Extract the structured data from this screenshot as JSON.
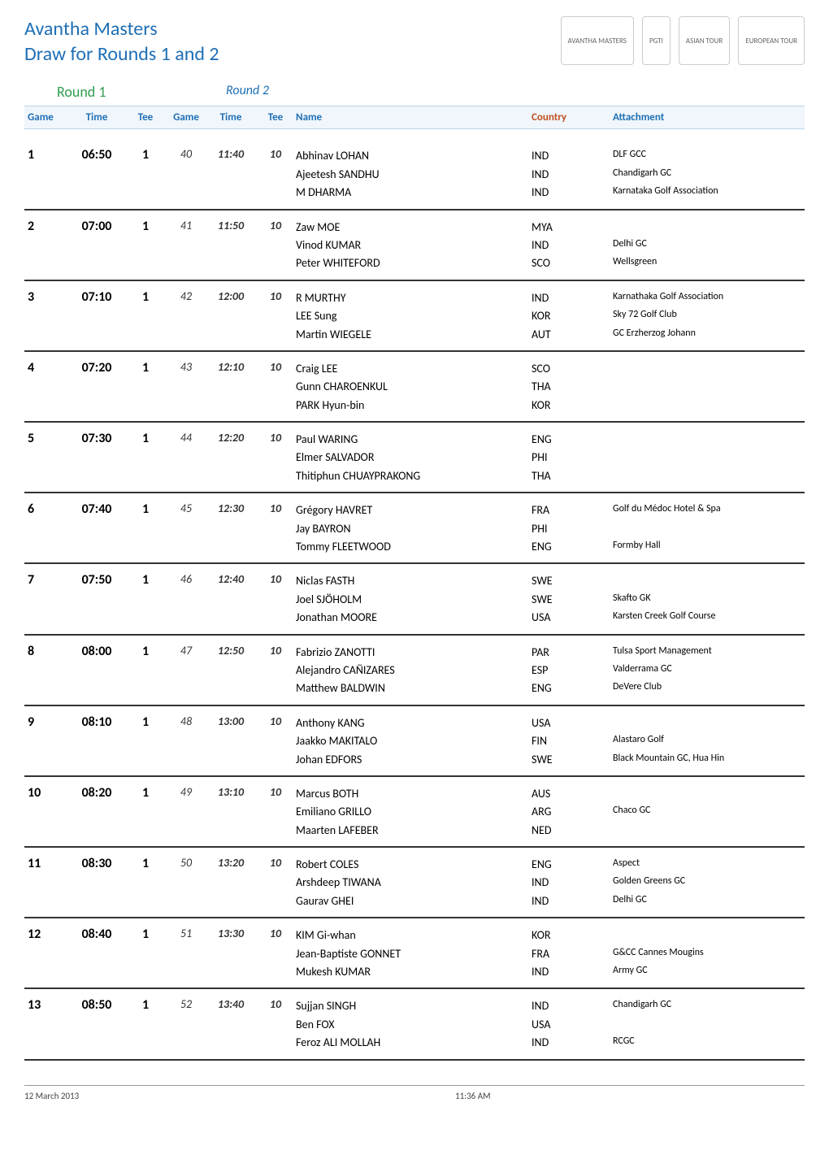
{
  "title_line1": "Avantha Masters",
  "title_line2": "Draw for Rounds 1 and 2",
  "logos": [
    "AVANTHA MASTERS",
    "PGTI",
    "ASIAN TOUR",
    "EUROPEAN TOUR"
  ],
  "round1_label": "Round 1",
  "round2_label": "Round 2",
  "columns": {
    "game1": "Game",
    "time1": "Time",
    "tee1": "Tee",
    "game2": "Game",
    "time2": "Time",
    "tee2": "Tee",
    "name": "Name",
    "country": "Country",
    "attachment": "Attachment"
  },
  "colors": {
    "title": "#1f6fb5",
    "round1": "#2e9e4f",
    "round2": "#1f6fb5",
    "header_bg": "#f0f6fb",
    "header_border": "#b8d4ea",
    "header_text": "#1f6fb5",
    "country_header": "#c05020",
    "row_border": "#333333"
  },
  "fontsizes": {
    "title": 24,
    "round_label": 18,
    "header": 13,
    "body": 14,
    "attach": 12,
    "footer": 11
  },
  "games": [
    {
      "g1": "1",
      "t1": "06:50",
      "tee1": "1",
      "g2": "40",
      "t2": "11:40",
      "tee2": "10",
      "players": [
        {
          "name": "Abhinav LOHAN",
          "country": "IND",
          "attach": "DLF GCC"
        },
        {
          "name": "Ajeetesh SANDHU",
          "country": "IND",
          "attach": "Chandigarh GC"
        },
        {
          "name": "M DHARMA",
          "country": "IND",
          "attach": "Karnataka Golf Association"
        }
      ]
    },
    {
      "g1": "2",
      "t1": "07:00",
      "tee1": "1",
      "g2": "41",
      "t2": "11:50",
      "tee2": "10",
      "players": [
        {
          "name": "Zaw MOE",
          "country": "MYA",
          "attach": ""
        },
        {
          "name": "Vinod KUMAR",
          "country": "IND",
          "attach": "Delhi GC"
        },
        {
          "name": "Peter WHITEFORD",
          "country": "SCO",
          "attach": "Wellsgreen"
        }
      ]
    },
    {
      "g1": "3",
      "t1": "07:10",
      "tee1": "1",
      "g2": "42",
      "t2": "12:00",
      "tee2": "10",
      "players": [
        {
          "name": "R MURTHY",
          "country": "IND",
          "attach": "Karnathaka Golf Association"
        },
        {
          "name": "LEE Sung",
          "country": "KOR",
          "attach": "Sky 72 Golf Club"
        },
        {
          "name": "Martin WIEGELE",
          "country": "AUT",
          "attach": "GC Erzherzog Johann"
        }
      ]
    },
    {
      "g1": "4",
      "t1": "07:20",
      "tee1": "1",
      "g2": "43",
      "t2": "12:10",
      "tee2": "10",
      "players": [
        {
          "name": "Craig LEE",
          "country": "SCO",
          "attach": ""
        },
        {
          "name": "Gunn CHAROENKUL",
          "country": "THA",
          "attach": ""
        },
        {
          "name": "PARK Hyun-bin",
          "country": "KOR",
          "attach": ""
        }
      ]
    },
    {
      "g1": "5",
      "t1": "07:30",
      "tee1": "1",
      "g2": "44",
      "t2": "12:20",
      "tee2": "10",
      "players": [
        {
          "name": "Paul WARING",
          "country": "ENG",
          "attach": ""
        },
        {
          "name": "Elmer SALVADOR",
          "country": "PHI",
          "attach": ""
        },
        {
          "name": "Thitiphun CHUAYPRAKONG",
          "country": "THA",
          "attach": ""
        }
      ]
    },
    {
      "g1": "6",
      "t1": "07:40",
      "tee1": "1",
      "g2": "45",
      "t2": "12:30",
      "tee2": "10",
      "players": [
        {
          "name": "Grégory HAVRET",
          "country": "FRA",
          "attach": "Golf du Médoc Hotel & Spa"
        },
        {
          "name": "Jay BAYRON",
          "country": "PHI",
          "attach": ""
        },
        {
          "name": "Tommy FLEETWOOD",
          "country": "ENG",
          "attach": "Formby Hall"
        }
      ]
    },
    {
      "g1": "7",
      "t1": "07:50",
      "tee1": "1",
      "g2": "46",
      "t2": "12:40",
      "tee2": "10",
      "players": [
        {
          "name": "Niclas FASTH",
          "country": "SWE",
          "attach": ""
        },
        {
          "name": "Joel SJÖHOLM",
          "country": "SWE",
          "attach": "Skafto GK"
        },
        {
          "name": "Jonathan MOORE",
          "country": "USA",
          "attach": "Karsten Creek Golf Course"
        }
      ]
    },
    {
      "g1": "8",
      "t1": "08:00",
      "tee1": "1",
      "g2": "47",
      "t2": "12:50",
      "tee2": "10",
      "players": [
        {
          "name": "Fabrizio ZANOTTI",
          "country": "PAR",
          "attach": "Tulsa Sport Management"
        },
        {
          "name": "Alejandro CAÑIZARES",
          "country": "ESP",
          "attach": "Valderrama GC"
        },
        {
          "name": "Matthew BALDWIN",
          "country": "ENG",
          "attach": "DeVere Club"
        }
      ]
    },
    {
      "g1": "9",
      "t1": "08:10",
      "tee1": "1",
      "g2": "48",
      "t2": "13:00",
      "tee2": "10",
      "players": [
        {
          "name": "Anthony KANG",
          "country": "USA",
          "attach": ""
        },
        {
          "name": "Jaakko MAKITALO",
          "country": "FIN",
          "attach": "Alastaro Golf"
        },
        {
          "name": "Johan EDFORS",
          "country": "SWE",
          "attach": "Black Mountain GC, Hua Hin"
        }
      ]
    },
    {
      "g1": "10",
      "t1": "08:20",
      "tee1": "1",
      "g2": "49",
      "t2": "13:10",
      "tee2": "10",
      "players": [
        {
          "name": "Marcus BOTH",
          "country": "AUS",
          "attach": ""
        },
        {
          "name": "Emiliano GRILLO",
          "country": "ARG",
          "attach": "Chaco GC"
        },
        {
          "name": "Maarten LAFEBER",
          "country": "NED",
          "attach": ""
        }
      ]
    },
    {
      "g1": "11",
      "t1": "08:30",
      "tee1": "1",
      "g2": "50",
      "t2": "13:20",
      "tee2": "10",
      "players": [
        {
          "name": "Robert COLES",
          "country": "ENG",
          "attach": "Aspect"
        },
        {
          "name": "Arshdeep TIWANA",
          "country": "IND",
          "attach": "Golden Greens GC"
        },
        {
          "name": "Gaurav GHEI",
          "country": "IND",
          "attach": "Delhi GC"
        }
      ]
    },
    {
      "g1": "12",
      "t1": "08:40",
      "tee1": "1",
      "g2": "51",
      "t2": "13:30",
      "tee2": "10",
      "players": [
        {
          "name": "KIM Gi-whan",
          "country": "KOR",
          "attach": ""
        },
        {
          "name": "Jean-Baptiste GONNET",
          "country": "FRA",
          "attach": "G&CC Cannes Mougins"
        },
        {
          "name": "Mukesh KUMAR",
          "country": "IND",
          "attach": "Army GC"
        }
      ]
    },
    {
      "g1": "13",
      "t1": "08:50",
      "tee1": "1",
      "g2": "52",
      "t2": "13:40",
      "tee2": "10",
      "players": [
        {
          "name": "Sujjan SINGH",
          "country": "IND",
          "attach": "Chandigarh GC"
        },
        {
          "name": "Ben FOX",
          "country": "USA",
          "attach": ""
        },
        {
          "name": "Feroz ALI MOLLAH",
          "country": "IND",
          "attach": "RCGC"
        }
      ]
    }
  ],
  "footer": {
    "left": "12 March 2013",
    "mid": "11:36 AM"
  }
}
